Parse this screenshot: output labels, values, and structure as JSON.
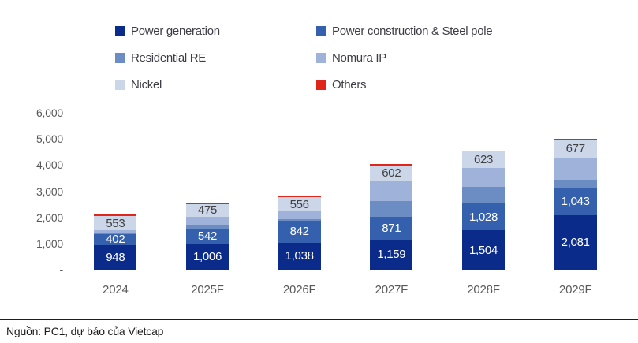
{
  "chart_data": {
    "type": "bar",
    "stacked": true,
    "title": "",
    "categories": [
      "2024",
      "2025F",
      "2026F",
      "2027F",
      "2028F",
      "2029F"
    ],
    "series": [
      {
        "name": "Power generation",
        "color": "#0a2b8a",
        "label_color": "#ffffff",
        "show_labels": true,
        "values": [
          948,
          1006,
          1038,
          1159,
          1504,
          2081
        ]
      },
      {
        "name": "Power construction & Steel pole",
        "color": "#3560ad",
        "label_color": "#ffffff",
        "show_labels": true,
        "values": [
          402,
          542,
          842,
          871,
          1028,
          1043
        ]
      },
      {
        "name": "Residential RE",
        "color": "#6c8cc4",
        "label_color": "#ffffff",
        "show_labels": false,
        "values": [
          60,
          180,
          60,
          600,
          630,
          300
        ]
      },
      {
        "name": "Nomura IP",
        "color": "#9fb2d9",
        "label_color": "#404040",
        "show_labels": false,
        "values": [
          90,
          300,
          280,
          750,
          725,
          870
        ]
      },
      {
        "name": "Nickel",
        "color": "#ccd6e9",
        "label_color": "#404040",
        "show_labels": true,
        "values": [
          553,
          475,
          556,
          602,
          623,
          677
        ]
      },
      {
        "name": "Others",
        "color": "#e0261b",
        "label_color": "#ffffff",
        "show_labels": false,
        "values": [
          50,
          50,
          50,
          50,
          50,
          50
        ]
      }
    ],
    "y_ticks": [
      {
        "label": "6,000",
        "value": 6000
      },
      {
        "label": "5,000",
        "value": 5000
      },
      {
        "label": "4,000",
        "value": 4000
      },
      {
        "label": "3,000",
        "value": 3000
      },
      {
        "label": "2,000",
        "value": 2000
      },
      {
        "label": "1,000",
        "value": 1000
      },
      {
        "label": "-",
        "value": 0
      }
    ],
    "ylim": [
      0,
      6000
    ],
    "gridlines": false,
    "legend_position": "top"
  },
  "footer": {
    "source": "Nguồn: PC1, dự báo của Vietcap"
  }
}
